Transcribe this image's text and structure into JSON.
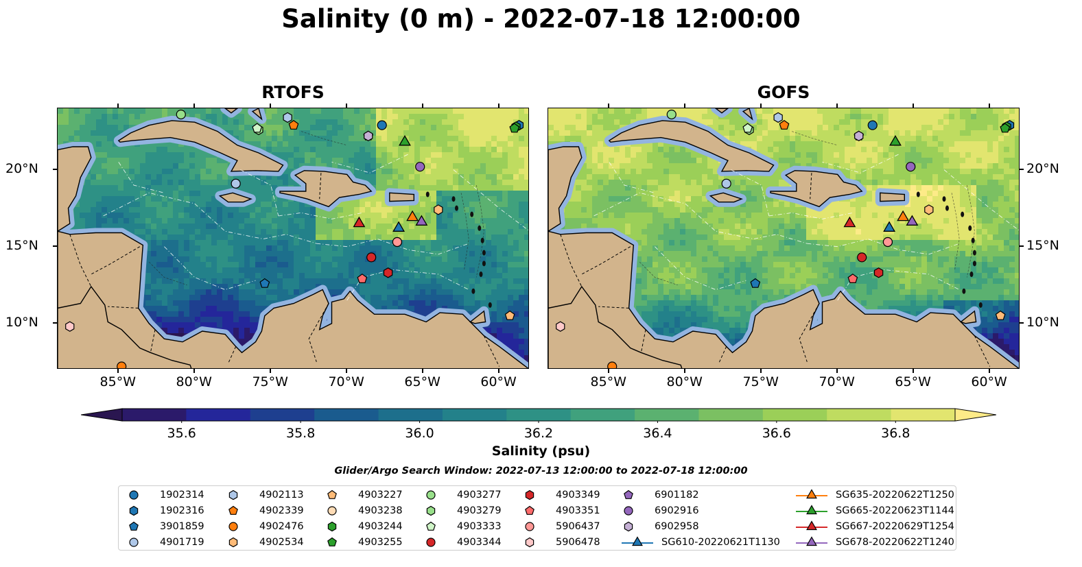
{
  "figure": {
    "title": "Salinity (0 m) - 2022-07-18 12:00:00",
    "search_window": "Glider/Argo Search Window: 2022-07-13 12:00:00 to 2022-07-18 12:00:00"
  },
  "panels": [
    {
      "title": "RTOFS",
      "model": "rtofs"
    },
    {
      "title": "GOFS",
      "model": "gofs"
    }
  ],
  "map_extent": {
    "lon": [
      -89,
      -58
    ],
    "lat": [
      7,
      24
    ]
  },
  "lon_ticks": [
    -85,
    -80,
    -75,
    -70,
    -65,
    -60
  ],
  "lon_tick_labels": [
    "85°W",
    "80°W",
    "75°W",
    "70°W",
    "65°W",
    "60°W"
  ],
  "lat_ticks": [
    10,
    15,
    20
  ],
  "lat_tick_labels": [
    "10°N",
    "15°N",
    "20°N"
  ],
  "colorbar": {
    "label": "Salinity (psu)",
    "min": 35.5,
    "max": 36.9,
    "step": 0.1,
    "ticks": [
      35.6,
      35.8,
      36.0,
      36.2,
      36.4,
      36.6,
      36.8
    ],
    "tick_labels": [
      "35.6",
      "35.8",
      "36.0",
      "36.2",
      "36.4",
      "36.6",
      "36.8"
    ],
    "colors": [
      "#2b1a6a",
      "#24269a",
      "#1e3f8f",
      "#1a5b8e",
      "#1d6f8c",
      "#23818a",
      "#2e9185",
      "#40a17d",
      "#5bb170",
      "#7bc062",
      "#9bcf58",
      "#bfdc60",
      "#e2e56f"
    ],
    "under_color": "#2a1650",
    "over_color": "#fdeb88",
    "extend": "both"
  },
  "colors": {
    "land": "#d2b48c",
    "shelf": "#93b4e0",
    "border": "#000000"
  },
  "floats": [
    {
      "id": "1902314",
      "marker": "circle",
      "color": "#1f77b4",
      "lon": -67.7,
      "lat": 22.9
    },
    {
      "id": "1902316",
      "marker": "hexagon",
      "color": "#1f77b4",
      "lon": -58.7,
      "lat": 22.9
    },
    {
      "id": "3901859",
      "marker": "pentagon",
      "color": "#1f77b4",
      "lon": -75.4,
      "lat": 12.6
    },
    {
      "id": "4901719",
      "marker": "circle",
      "color": "#aec7e8",
      "lon": -77.3,
      "lat": 19.1
    },
    {
      "id": "4902113",
      "marker": "hexagon",
      "color": "#aec7e8",
      "lon": -73.9,
      "lat": 23.4
    },
    {
      "id": "4902339",
      "marker": "pentagon",
      "color": "#ff7f0e",
      "lon": -73.5,
      "lat": 22.9
    },
    {
      "id": "4902476",
      "marker": "circle",
      "color": "#ff7f0e",
      "lon": -84.8,
      "lat": 7.2
    },
    {
      "id": "4902534",
      "marker": "hexagon",
      "color": "#ffbb78",
      "lon": -64.0,
      "lat": 17.4
    },
    {
      "id": "4903227",
      "marker": "pentagon",
      "color": "#ffbb78",
      "lon": -59.3,
      "lat": 10.5
    },
    {
      "id": "4903238",
      "marker": "circle",
      "color": "#ffdcb6",
      "lon": -66.7,
      "lat": 15.3
    },
    {
      "id": "4903244",
      "marker": "hexagon",
      "color": "#2ca02c",
      "lon": -58.9,
      "lat": 22.8
    },
    {
      "id": "4903255",
      "marker": "pentagon",
      "color": "#2ca02c",
      "lon": -59.0,
      "lat": 22.7
    },
    {
      "id": "4903277",
      "marker": "circle",
      "color": "#98df8a",
      "lon": -80.9,
      "lat": 23.6
    },
    {
      "id": "4903279",
      "marker": "hexagon",
      "color": "#98df8a",
      "lon": -75.8,
      "lat": 22.6
    },
    {
      "id": "4903333",
      "marker": "pentagon",
      "color": "#d0f5c8",
      "lon": -75.9,
      "lat": 22.7
    },
    {
      "id": "4903344",
      "marker": "circle",
      "color": "#d62728",
      "lon": -68.4,
      "lat": 14.3
    },
    {
      "id": "4903349",
      "marker": "hexagon",
      "color": "#d62728",
      "lon": -67.3,
      "lat": 13.3
    },
    {
      "id": "4903351",
      "marker": "pentagon",
      "color": "#ff6b6b",
      "lon": -69.0,
      "lat": 12.9
    },
    {
      "id": "5906437",
      "marker": "circle",
      "color": "#ff9896",
      "lon": -66.7,
      "lat": 15.3
    },
    {
      "id": "5906478",
      "marker": "hexagon",
      "color": "#ffc9c9",
      "lon": -88.2,
      "lat": 9.8
    },
    {
      "id": "6901182",
      "marker": "pentagon",
      "color": "#9467bd",
      "lon": -68.6,
      "lat": 22.2
    },
    {
      "id": "6902916",
      "marker": "circle",
      "color": "#9467bd",
      "lon": -65.2,
      "lat": 20.2
    },
    {
      "id": "6902958",
      "marker": "hexagon",
      "color": "#c5b0d5",
      "lon": -68.6,
      "lat": 22.2
    }
  ],
  "gliders": [
    {
      "id": "SG610-20220621T1130",
      "color": "#1f77b4",
      "lon": -66.6,
      "lat": 16.2
    },
    {
      "id": "SG635-20220622T1250",
      "color": "#ff7f0e",
      "lon": -65.7,
      "lat": 16.9
    },
    {
      "id": "SG665-20220623T1144",
      "color": "#2ca02c",
      "lon": -66.2,
      "lat": 21.8
    },
    {
      "id": "SG667-20220629T1254",
      "color": "#d62728",
      "lon": -69.2,
      "lat": 16.5
    },
    {
      "id": "SG678-20220622T1240",
      "color": "#9467bd",
      "lon": -65.1,
      "lat": 16.6
    }
  ]
}
